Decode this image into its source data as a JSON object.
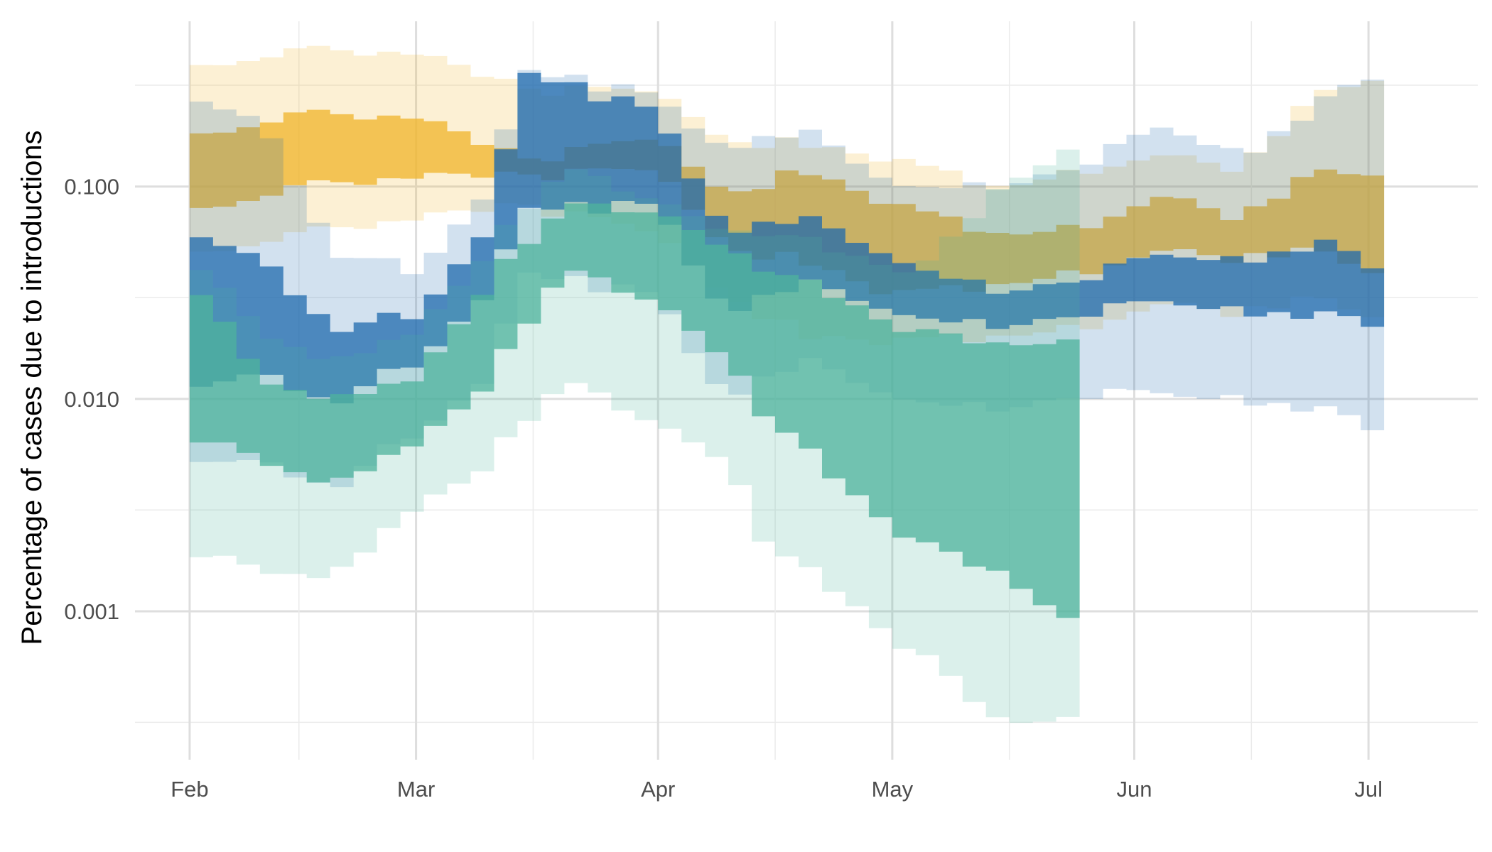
{
  "chart_data": {
    "type": "area",
    "title": "",
    "xlabel": "",
    "ylabel": "Percentage of cases due to introductions",
    "y_scale": "log10",
    "ylim": [
      0.0002,
      0.6
    ],
    "xlim": [
      "2020-01-25",
      "2020-07-15"
    ],
    "grid": true,
    "legend": "none",
    "x_ticks": [
      {
        "date": "2020-02-01",
        "label": "Feb"
      },
      {
        "date": "2020-03-01",
        "label": "Mar"
      },
      {
        "date": "2020-04-01",
        "label": "Apr"
      },
      {
        "date": "2020-05-01",
        "label": "May"
      },
      {
        "date": "2020-06-01",
        "label": "Jun"
      },
      {
        "date": "2020-07-01",
        "label": "Jul"
      }
    ],
    "x_minor_ticks": [
      "2020-02-15",
      "2020-03-16",
      "2020-04-16",
      "2020-05-16",
      "2020-06-16"
    ],
    "y_ticks": [
      {
        "value": 0.001,
        "label": "0.001"
      },
      {
        "value": 0.01,
        "label": "0.010"
      },
      {
        "value": 0.1,
        "label": "0.100"
      }
    ],
    "y_minor_ticks": [
      0.0003,
      0.003,
      0.03,
      0.3
    ],
    "series": [
      {
        "color": "#F0B429",
        "start": "2020-02-01",
        "end": "2020-07-03",
        "x": [
          "2020-02-01",
          "2020-02-15",
          "2020-03-01",
          "2020-03-15",
          "2020-04-01",
          "2020-04-10",
          "2020-04-20",
          "2020-05-01",
          "2020-05-15",
          "2020-05-25",
          "2020-06-05",
          "2020-06-15",
          "2020-06-25",
          "2020-07-03"
        ],
        "inner_lo": [
          0.08,
          0.1,
          0.11,
          0.11,
          0.12,
          0.05,
          0.045,
          0.03,
          0.035,
          0.04,
          0.05,
          0.045,
          0.05,
          0.04
        ],
        "inner_hi": [
          0.18,
          0.22,
          0.21,
          0.13,
          0.17,
          0.09,
          0.12,
          0.08,
          0.06,
          0.065,
          0.09,
          0.07,
          0.12,
          0.12
        ],
        "outer_lo": [
          0.05,
          0.06,
          0.07,
          0.08,
          0.06,
          0.03,
          0.02,
          0.018,
          0.02,
          0.022,
          0.028,
          0.025,
          0.03,
          0.025
        ],
        "outer_hi": [
          0.38,
          0.44,
          0.42,
          0.28,
          0.28,
          0.16,
          0.16,
          0.13,
          0.1,
          0.12,
          0.14,
          0.12,
          0.28,
          0.35
        ]
      },
      {
        "color": "#1F6AAD",
        "start": "2020-02-01",
        "end": "2020-07-03",
        "x": [
          "2020-02-01",
          "2020-02-10",
          "2020-02-20",
          "2020-03-01",
          "2020-03-10",
          "2020-03-15",
          "2020-04-01",
          "2020-04-10",
          "2020-04-20",
          "2020-05-01",
          "2020-05-15",
          "2020-05-25",
          "2020-06-05",
          "2020-06-15",
          "2020-06-25",
          "2020-07-03"
        ],
        "inner_lo": [
          0.011,
          0.013,
          0.01,
          0.015,
          0.03,
          0.08,
          0.08,
          0.025,
          0.035,
          0.025,
          0.022,
          0.024,
          0.03,
          0.026,
          0.025,
          0.022
        ],
        "inner_hi": [
          0.06,
          0.045,
          0.022,
          0.025,
          0.06,
          0.35,
          0.22,
          0.06,
          0.07,
          0.045,
          0.032,
          0.035,
          0.05,
          0.045,
          0.055,
          0.04
        ],
        "outer_lo": [
          0.005,
          0.005,
          0.004,
          0.007,
          0.012,
          0.04,
          0.03,
          0.01,
          0.015,
          0.01,
          0.009,
          0.01,
          0.011,
          0.01,
          0.009,
          0.007
        ],
        "outer_hi": [
          0.26,
          0.2,
          0.05,
          0.04,
          0.09,
          0.36,
          0.26,
          0.15,
          0.18,
          0.1,
          0.1,
          0.12,
          0.2,
          0.14,
          0.25,
          0.35
        ]
      },
      {
        "color": "#4DB39C",
        "start": "2020-02-01",
        "end": "2020-05-25",
        "x": [
          "2020-02-01",
          "2020-02-10",
          "2020-02-20",
          "2020-03-01",
          "2020-03-10",
          "2020-03-20",
          "2020-04-01",
          "2020-04-10",
          "2020-04-15",
          "2020-04-25",
          "2020-05-05",
          "2020-05-15",
          "2020-05-25"
        ],
        "inner_lo": [
          0.007,
          0.005,
          0.004,
          0.006,
          0.012,
          0.04,
          0.03,
          0.015,
          0.008,
          0.004,
          0.002,
          0.0015,
          0.0008
        ],
        "inner_hi": [
          0.04,
          0.012,
          0.01,
          0.012,
          0.035,
          0.08,
          0.08,
          0.05,
          0.04,
          0.03,
          0.02,
          0.018,
          0.018
        ],
        "outer_lo": [
          0.002,
          0.0015,
          0.0015,
          0.003,
          0.005,
          0.012,
          0.008,
          0.005,
          0.002,
          0.0012,
          0.0006,
          0.0003,
          0.0003
        ],
        "outer_hi": [
          0.05,
          0.02,
          0.015,
          0.02,
          0.05,
          0.12,
          0.09,
          0.06,
          0.06,
          0.05,
          0.04,
          0.1,
          0.15
        ]
      }
    ]
  }
}
